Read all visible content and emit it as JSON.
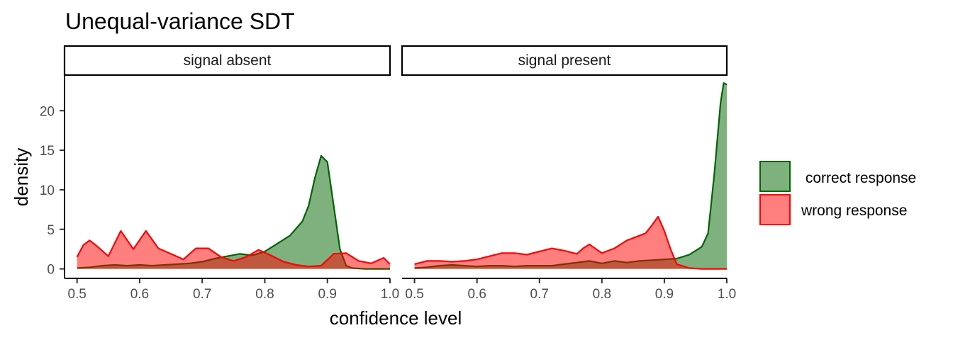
{
  "chart_data": {
    "type": "area",
    "title": "Unequal-variance SDT",
    "xlabel": "confidence level",
    "ylabel": "density",
    "xlim": [
      0.48,
      1.0
    ],
    "ylim": [
      -1.2,
      24.5
    ],
    "x_ticks": [
      0.5,
      0.6,
      0.7,
      0.8,
      0.9,
      1.0
    ],
    "x_tick_labels": [
      "0.5",
      "0.6",
      "0.7",
      "0.8",
      "0.9",
      "1.0"
    ],
    "y_ticks": [
      0,
      5,
      10,
      15,
      20
    ],
    "y_tick_labels": [
      "0",
      "5",
      "10",
      "15",
      "20"
    ],
    "grid": false,
    "legend_position": "right",
    "legend": [
      {
        "label": " correct response",
        "color": "#006400",
        "fill": "#006400"
      },
      {
        "label": "wrong response",
        "color": "#ff0000",
        "fill": "#ff0000"
      }
    ],
    "panels": [
      {
        "strip": "signal absent",
        "series": [
          {
            "name": " correct response",
            "x": [
              0.5,
              0.52,
              0.54,
              0.56,
              0.58,
              0.6,
              0.62,
              0.64,
              0.66,
              0.68,
              0.7,
              0.72,
              0.74,
              0.76,
              0.78,
              0.8,
              0.82,
              0.84,
              0.86,
              0.87,
              0.88,
              0.89,
              0.9,
              0.91,
              0.92,
              0.93,
              0.94,
              0.96,
              0.98,
              1.0
            ],
            "values": [
              0.1,
              0.2,
              0.4,
              0.5,
              0.4,
              0.5,
              0.4,
              0.5,
              0.6,
              0.7,
              0.9,
              1.3,
              1.6,
              1.9,
              1.7,
              2.2,
              3.2,
              4.2,
              6.0,
              8.0,
              11.5,
              14.3,
              13.5,
              8.0,
              2.5,
              0.4,
              0.1,
              0.0,
              0.0,
              0.0
            ]
          },
          {
            "name": "wrong response",
            "x": [
              0.5,
              0.51,
              0.52,
              0.53,
              0.55,
              0.57,
              0.59,
              0.61,
              0.63,
              0.65,
              0.67,
              0.69,
              0.71,
              0.73,
              0.75,
              0.77,
              0.79,
              0.81,
              0.83,
              0.85,
              0.87,
              0.89,
              0.91,
              0.93,
              0.95,
              0.97,
              0.99,
              1.0
            ],
            "values": [
              1.5,
              3.0,
              3.6,
              3.0,
              1.6,
              4.8,
              2.5,
              4.8,
              2.6,
              1.9,
              1.2,
              2.6,
              2.6,
              1.5,
              1.0,
              1.5,
              2.4,
              1.7,
              0.9,
              0.5,
              0.3,
              0.4,
              1.9,
              2.0,
              1.0,
              0.7,
              1.4,
              0.6
            ]
          }
        ]
      },
      {
        "strip": "signal present",
        "series": [
          {
            "name": " correct response",
            "x": [
              0.5,
              0.52,
              0.54,
              0.56,
              0.58,
              0.6,
              0.62,
              0.64,
              0.66,
              0.68,
              0.7,
              0.72,
              0.74,
              0.76,
              0.78,
              0.8,
              0.82,
              0.84,
              0.86,
              0.88,
              0.9,
              0.92,
              0.94,
              0.96,
              0.97,
              0.98,
              0.99,
              0.995,
              1.0
            ],
            "values": [
              0.1,
              0.2,
              0.4,
              0.5,
              0.4,
              0.3,
              0.4,
              0.4,
              0.3,
              0.4,
              0.4,
              0.4,
              0.6,
              0.8,
              1.0,
              0.7,
              1.0,
              0.8,
              1.0,
              1.1,
              1.2,
              1.3,
              1.8,
              2.8,
              4.5,
              12.0,
              21.0,
              23.5,
              23.3
            ]
          },
          {
            "name": "wrong response",
            "x": [
              0.5,
              0.52,
              0.54,
              0.56,
              0.58,
              0.6,
              0.62,
              0.64,
              0.66,
              0.68,
              0.7,
              0.72,
              0.74,
              0.76,
              0.77,
              0.78,
              0.8,
              0.82,
              0.84,
              0.86,
              0.87,
              0.88,
              0.89,
              0.9,
              0.91,
              0.92,
              0.94,
              0.96,
              0.98,
              1.0
            ],
            "values": [
              0.6,
              1.0,
              1.0,
              0.9,
              1.0,
              1.2,
              1.6,
              2.0,
              2.0,
              1.8,
              2.2,
              2.6,
              2.3,
              1.9,
              2.6,
              3.1,
              2.0,
              2.6,
              3.6,
              4.2,
              4.5,
              5.5,
              6.6,
              4.8,
              2.5,
              0.6,
              0.1,
              0.0,
              0.0,
              0.0
            ]
          }
        ]
      }
    ]
  }
}
